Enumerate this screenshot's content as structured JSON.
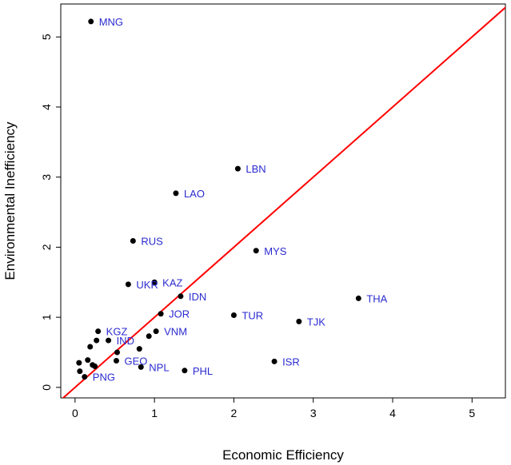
{
  "chart_data": {
    "type": "scatter",
    "xlabel": "Economic Efficiency",
    "ylabel": "Environmental Inefficiency",
    "xlim": [
      -0.18,
      5.42
    ],
    "ylim": [
      -0.15,
      5.47
    ],
    "xticks": [
      "0",
      "1",
      "2",
      "3",
      "4",
      "5"
    ],
    "yticks": [
      "0",
      "1",
      "2",
      "3",
      "4",
      "5"
    ],
    "grid": false,
    "reference_line": {
      "type": "y = x",
      "color": "#ff0000"
    },
    "point_color": "#000000",
    "label_color": "#2b2bd0",
    "points": [
      {
        "label": "MNG",
        "x": 0.2,
        "y": 5.22
      },
      {
        "label": "LBN",
        "x": 2.05,
        "y": 3.12
      },
      {
        "label": "LAO",
        "x": 1.27,
        "y": 2.77
      },
      {
        "label": "RUS",
        "x": 0.73,
        "y": 2.09
      },
      {
        "label": "MYS",
        "x": 2.28,
        "y": 1.95
      },
      {
        "label": "UKR",
        "x": 0.67,
        "y": 1.47
      },
      {
        "label": "KAZ",
        "x": 1.0,
        "y": 1.5
      },
      {
        "label": "IDN",
        "x": 1.33,
        "y": 1.3
      },
      {
        "label": "THA",
        "x": 3.57,
        "y": 1.27
      },
      {
        "label": "JOR",
        "x": 1.08,
        "y": 1.05
      },
      {
        "label": "TUR",
        "x": 2.0,
        "y": 1.03
      },
      {
        "label": "TJK",
        "x": 2.82,
        "y": 0.94
      },
      {
        "label": "KGZ",
        "x": 0.29,
        "y": 0.8
      },
      {
        "label": "VNM",
        "x": 1.02,
        "y": 0.8
      },
      {
        "label": "IND",
        "x": 0.42,
        "y": 0.67
      },
      {
        "label": "GEO",
        "x": 0.52,
        "y": 0.38
      },
      {
        "label": "ISR",
        "x": 2.51,
        "y": 0.37
      },
      {
        "label": "NPL",
        "x": 0.83,
        "y": 0.29
      },
      {
        "label": "PHL",
        "x": 1.38,
        "y": 0.24
      },
      {
        "label": "PNG",
        "x": 0.12,
        "y": 0.15
      },
      {
        "label": "",
        "x": 0.05,
        "y": 0.35
      },
      {
        "label": "",
        "x": 0.06,
        "y": 0.23
      },
      {
        "label": "",
        "x": 0.16,
        "y": 0.39
      },
      {
        "label": "",
        "x": 0.19,
        "y": 0.58
      },
      {
        "label": "",
        "x": 0.22,
        "y": 0.32
      },
      {
        "label": "",
        "x": 0.25,
        "y": 0.3
      },
      {
        "label": "",
        "x": 0.27,
        "y": 0.67
      },
      {
        "label": "",
        "x": 0.53,
        "y": 0.5
      },
      {
        "label": "",
        "x": 0.81,
        "y": 0.55
      },
      {
        "label": "",
        "x": 0.93,
        "y": 0.73
      }
    ]
  }
}
